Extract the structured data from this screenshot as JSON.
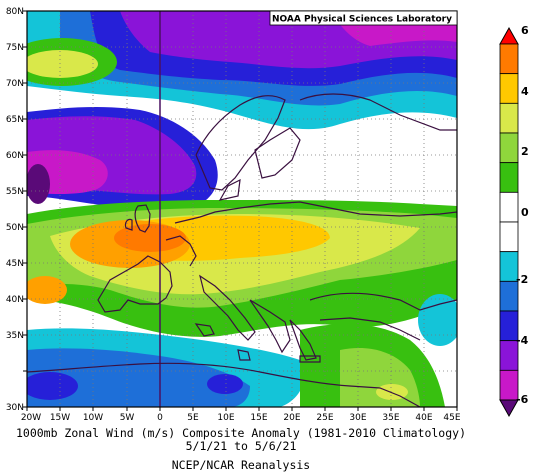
{
  "credit": "NOAA Physical Sciences Laboratory",
  "caption": {
    "line1": "1000mb Zonal Wind (m/s) Composite Anomaly (1981-2010 Climatology)",
    "line2": "5/1/21  to 5/6/21",
    "line3": "NCEP/NCAR Reanalysis"
  },
  "map": {
    "lat_labels": [
      "80N",
      "75N",
      "70N",
      "65N",
      "60N",
      "55N",
      "50N",
      "45N",
      "40N",
      "35N",
      "30N"
    ],
    "lon_labels": [
      "20W",
      "15W",
      "10W",
      "5W",
      "0",
      "5E",
      "10E",
      "15E",
      "20E",
      "25E",
      "30E",
      "35E",
      "40E",
      "45E"
    ]
  },
  "colorbar": {
    "labels": [
      "6",
      "4",
      "2",
      "0",
      "-2",
      "-4",
      "-6"
    ],
    "colors": [
      "#ff0000",
      "#ff7a00",
      "#ffc800",
      "#d9e84a",
      "#8fd63c",
      "#38c010",
      "#ffffff",
      "#ffffff",
      "#14c4d8",
      "#1e6fd8",
      "#2620d8",
      "#8a14d8",
      "#c818c8",
      "#5a0a78"
    ]
  }
}
